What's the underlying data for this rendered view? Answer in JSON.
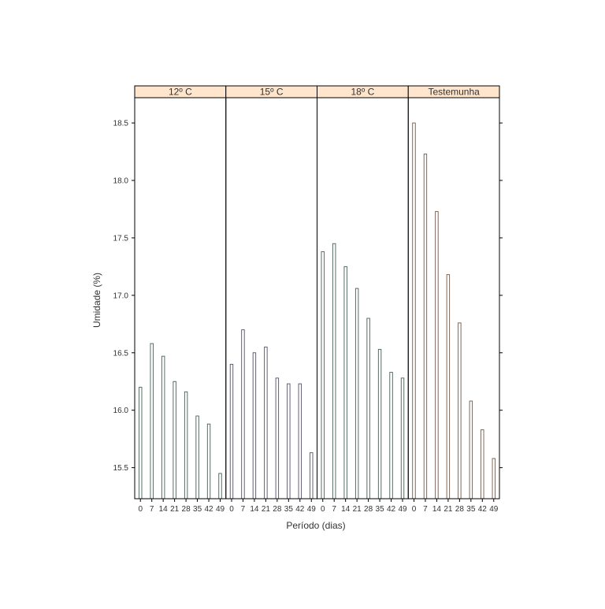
{
  "chart_data": {
    "type": "bar",
    "xlabel": "Período (dias)",
    "ylabel": "Umidade (%)",
    "ylim": [
      15.23,
      18.72
    ],
    "yticks": [
      15.5,
      16.0,
      16.5,
      17.0,
      17.5,
      18.0,
      18.5
    ],
    "ytick_labels": [
      "15.5",
      "16.0",
      "16.5",
      "17.0",
      "17.5",
      "18.0",
      "18.5"
    ],
    "categories": [
      "0",
      "7",
      "14",
      "21",
      "28",
      "35",
      "42",
      "49"
    ],
    "strip_color": "#ffe5cc",
    "panels": [
      {
        "label": "12º C",
        "values": [
          16.2,
          16.58,
          16.47,
          16.25,
          16.16,
          15.95,
          15.88,
          15.45
        ],
        "bar_color": "#7a9e8e"
      },
      {
        "label": "15º C",
        "values": [
          16.4,
          16.7,
          16.5,
          16.55,
          16.28,
          16.23,
          16.23,
          15.63
        ],
        "bar_color": "#8f86a8"
      },
      {
        "label": "18º C",
        "values": [
          17.38,
          17.45,
          17.25,
          17.06,
          16.8,
          16.53,
          16.33,
          16.28
        ],
        "bar_color": "#7a9e8e"
      },
      {
        "label": "Testemunha",
        "values": [
          18.5,
          18.23,
          17.73,
          17.18,
          16.76,
          16.08,
          15.83,
          15.58
        ],
        "bar_color": "#b8957c"
      }
    ]
  }
}
